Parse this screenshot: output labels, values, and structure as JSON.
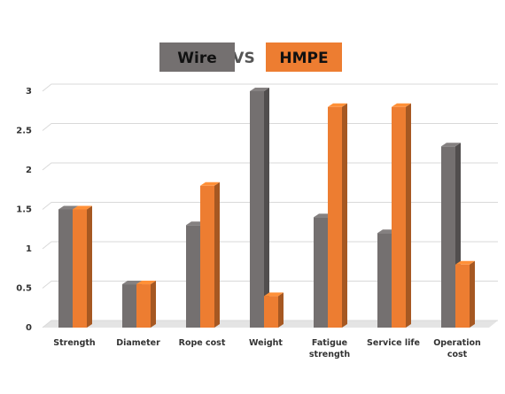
{
  "chart_data": {
    "type": "bar3d",
    "annotation": "VS",
    "categories": [
      "Strength",
      "Diameter",
      "Rope cost",
      "Weight",
      "Fatigue strength",
      "Service life",
      "Operation cost"
    ],
    "series": [
      {
        "name": "Wire",
        "color": "#747070",
        "values": [
          1.5,
          0.55,
          1.3,
          3,
          1.4,
          1.2,
          2.3
        ]
      },
      {
        "name": "HMPE",
        "color": "#ed7d31",
        "values": [
          1.5,
          0.55,
          1.8,
          0.4,
          2.8,
          2.8,
          0.8
        ]
      }
    ],
    "ylim": [
      0,
      3
    ],
    "yticks": [
      0,
      0.5,
      1,
      1.5,
      2,
      2.5,
      3
    ],
    "grid": true
  }
}
